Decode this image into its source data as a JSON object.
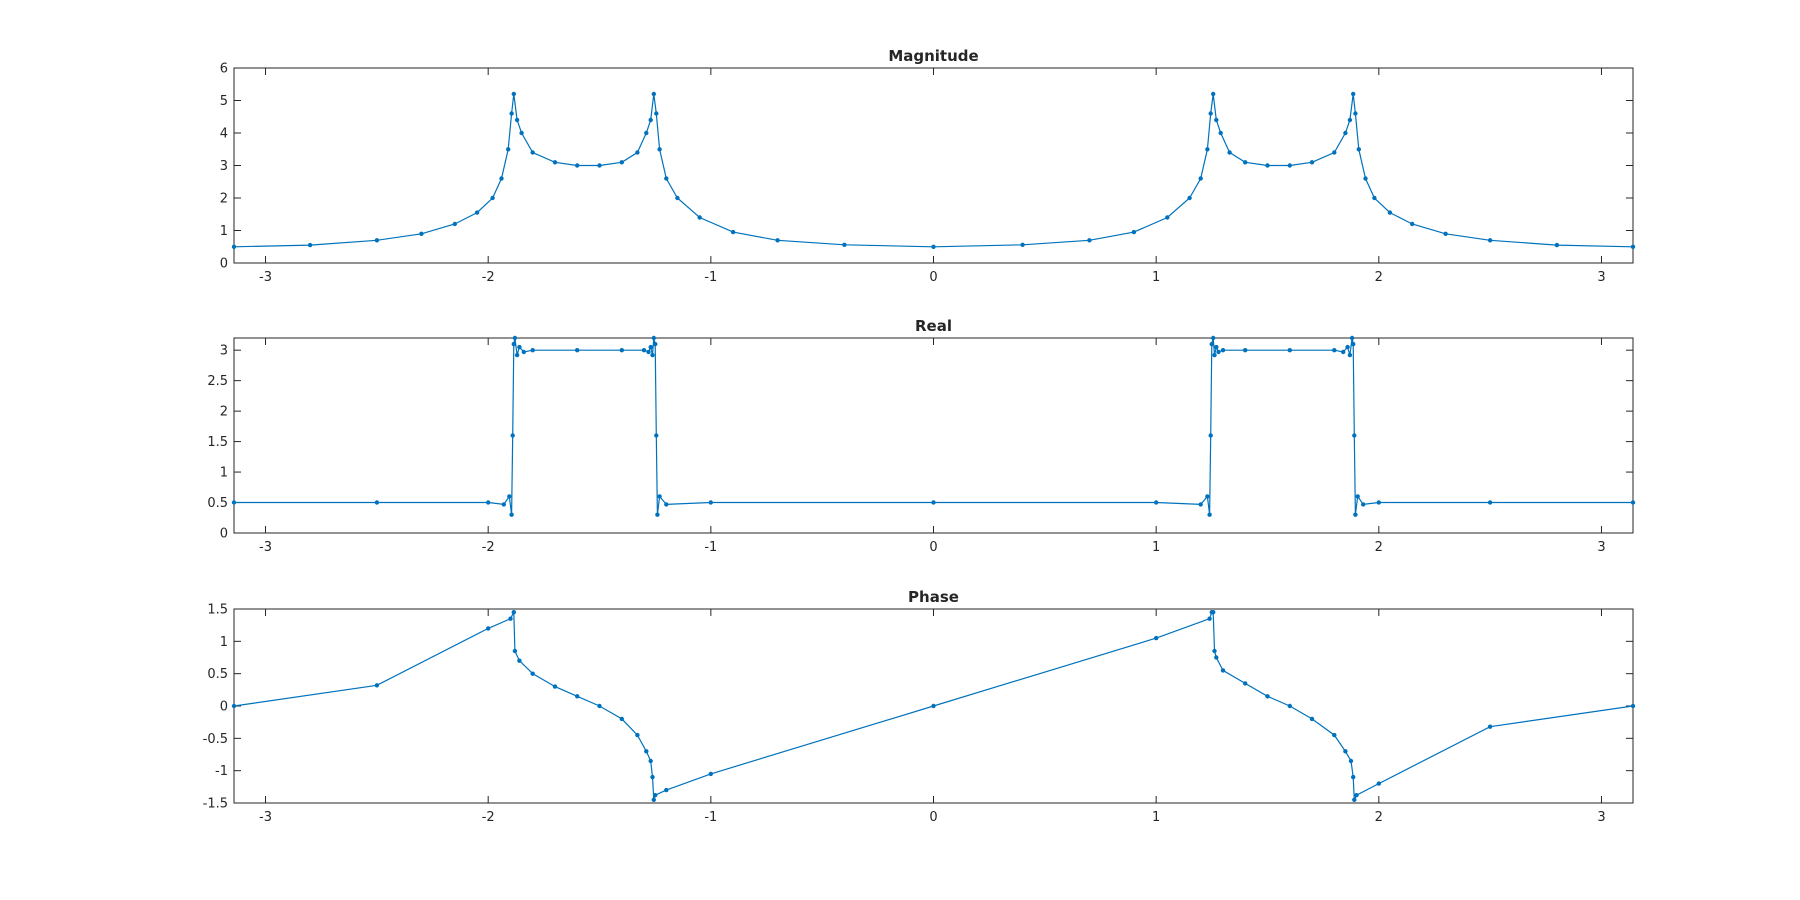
{
  "figure": {
    "background": "#ffffff",
    "series_color": "#0072bd"
  },
  "chart_data": [
    {
      "type": "line",
      "title": "Magnitude",
      "xlabel": "",
      "ylabel": "",
      "xlim": [
        -3.1416,
        3.1416
      ],
      "ylim": [
        0,
        6
      ],
      "xticks": [
        -3,
        -2,
        -1,
        0,
        1,
        2,
        3
      ],
      "xtick_labels": [
        "-3",
        "-2",
        "-1",
        "0",
        "1",
        "2",
        "3"
      ],
      "yticks": [
        0,
        1,
        2,
        3,
        4,
        5,
        6
      ],
      "ytick_labels": [
        "0",
        "1",
        "2",
        "3",
        "4",
        "5",
        "6"
      ],
      "grid": false,
      "markers": true,
      "series": [
        {
          "color": "#0072bd",
          "x": [
            -3.1416,
            -2.8,
            -2.5,
            -2.3,
            -2.15,
            -2.05,
            -1.98,
            -1.94,
            -1.91,
            -1.895,
            -1.885,
            -1.87,
            -1.85,
            -1.8,
            -1.7,
            -1.6,
            -1.5,
            -1.4,
            -1.33,
            -1.29,
            -1.27,
            -1.256,
            -1.245,
            -1.23,
            -1.2,
            -1.15,
            -1.05,
            -0.9,
            -0.7,
            -0.4,
            0,
            0.4,
            0.7,
            0.9,
            1.05,
            1.15,
            1.2,
            1.23,
            1.245,
            1.256,
            1.27,
            1.29,
            1.33,
            1.4,
            1.5,
            1.6,
            1.7,
            1.8,
            1.85,
            1.87,
            1.885,
            1.895,
            1.91,
            1.94,
            1.98,
            2.05,
            2.15,
            2.3,
            2.5,
            2.8,
            3.1416
          ],
          "y": [
            0.5,
            0.55,
            0.7,
            0.9,
            1.2,
            1.55,
            2.0,
            2.6,
            3.5,
            4.6,
            5.2,
            4.4,
            4.0,
            3.4,
            3.1,
            3.0,
            3.0,
            3.1,
            3.4,
            4.0,
            4.4,
            5.2,
            4.6,
            3.5,
            2.6,
            2.0,
            1.4,
            0.95,
            0.7,
            0.56,
            0.5,
            0.56,
            0.7,
            0.95,
            1.4,
            2.0,
            2.6,
            3.5,
            4.6,
            5.2,
            4.4,
            4.0,
            3.4,
            3.1,
            3.0,
            3.0,
            3.1,
            3.4,
            4.0,
            4.4,
            5.2,
            4.6,
            3.5,
            2.6,
            2.0,
            1.55,
            1.2,
            0.9,
            0.7,
            0.55,
            0.5
          ]
        }
      ]
    },
    {
      "type": "line",
      "title": "Real",
      "xlabel": "",
      "ylabel": "",
      "xlim": [
        -3.1416,
        3.1416
      ],
      "ylim": [
        0,
        3.2
      ],
      "xticks": [
        -3,
        -2,
        -1,
        0,
        1,
        2,
        3
      ],
      "xtick_labels": [
        "-3",
        "-2",
        "-1",
        "0",
        "1",
        "2",
        "3"
      ],
      "yticks": [
        0,
        0.5,
        1,
        1.5,
        2,
        2.5,
        3
      ],
      "ytick_labels": [
        "0",
        "0.5",
        "1",
        "1.5",
        "2",
        "2.5",
        "3"
      ],
      "grid": false,
      "markers": true,
      "series": [
        {
          "color": "#0072bd",
          "x": [
            -3.1416,
            -2.5,
            -2.0,
            -1.93,
            -1.905,
            -1.895,
            -1.89,
            -1.885,
            -1.88,
            -1.87,
            -1.86,
            -1.84,
            -1.8,
            -1.6,
            -1.4,
            -1.3,
            -1.28,
            -1.27,
            -1.262,
            -1.256,
            -1.25,
            -1.245,
            -1.24,
            -1.23,
            -1.2,
            -1.0,
            0,
            1.0,
            1.2,
            1.23,
            1.24,
            1.245,
            1.25,
            1.256,
            1.262,
            1.27,
            1.28,
            1.3,
            1.4,
            1.6,
            1.8,
            1.84,
            1.86,
            1.87,
            1.88,
            1.885,
            1.89,
            1.895,
            1.905,
            1.93,
            2.0,
            2.5,
            3.1416
          ],
          "y": [
            0.5,
            0.5,
            0.5,
            0.47,
            0.6,
            0.3,
            1.6,
            3.1,
            3.2,
            2.92,
            3.05,
            2.97,
            3.0,
            3.0,
            3.0,
            3.0,
            2.97,
            3.05,
            2.92,
            3.2,
            3.1,
            1.6,
            0.3,
            0.6,
            0.47,
            0.5,
            0.5,
            0.5,
            0.47,
            0.6,
            0.3,
            1.6,
            3.1,
            3.2,
            2.92,
            3.05,
            2.97,
            3.0,
            3.0,
            3.0,
            3.0,
            2.97,
            3.05,
            2.92,
            3.2,
            3.1,
            1.6,
            0.3,
            0.6,
            0.47,
            0.5,
            0.5,
            0.5
          ]
        }
      ]
    },
    {
      "type": "line",
      "title": "Phase",
      "xlabel": "",
      "ylabel": "",
      "xlim": [
        -3.1416,
        3.1416
      ],
      "ylim": [
        -1.5,
        1.5
      ],
      "xticks": [
        -3,
        -2,
        -1,
        0,
        1,
        2,
        3
      ],
      "xtick_labels": [
        "-3",
        "-2",
        "-1",
        "0",
        "1",
        "2",
        "3"
      ],
      "yticks": [
        -1.5,
        -1,
        -0.5,
        0,
        0.5,
        1,
        1.5
      ],
      "ytick_labels": [
        "-1.5",
        "-1",
        "-0.5",
        "0",
        "0.5",
        "1",
        "1.5"
      ],
      "grid": false,
      "markers": true,
      "series": [
        {
          "color": "#0072bd",
          "x": [
            -3.1416,
            -2.5,
            -2.0,
            -1.9,
            -1.885,
            -1.88,
            -1.86,
            -1.8,
            -1.7,
            -1.6,
            -1.5,
            -1.4,
            -1.33,
            -1.29,
            -1.27,
            -1.262,
            -1.256,
            -1.25,
            -1.2,
            -1.0,
            0,
            1.0,
            1.24,
            1.25,
            1.256,
            1.262,
            1.27,
            1.3,
            1.4,
            1.5,
            1.6,
            1.7,
            1.8,
            1.85,
            1.875,
            1.885,
            1.89,
            1.9,
            2.0,
            2.5,
            3.1416
          ],
          "y": [
            0.0,
            0.32,
            1.2,
            1.35,
            1.45,
            0.85,
            0.7,
            0.5,
            0.3,
            0.15,
            0.0,
            -0.2,
            -0.45,
            -0.7,
            -0.85,
            -1.1,
            -1.45,
            -1.38,
            -1.3,
            -1.05,
            0.0,
            1.05,
            1.35,
            1.45,
            1.45,
            0.85,
            0.75,
            0.55,
            0.35,
            0.15,
            0.0,
            -0.2,
            -0.45,
            -0.7,
            -0.85,
            -1.1,
            -1.45,
            -1.38,
            -1.2,
            -0.32,
            0.0
          ]
        }
      ]
    }
  ]
}
